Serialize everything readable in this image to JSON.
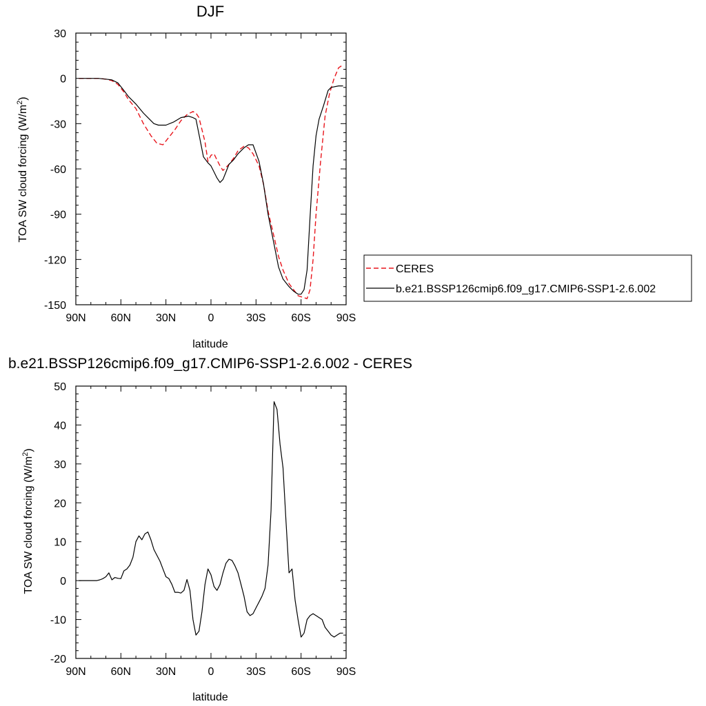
{
  "chart_data": [
    {
      "type": "line",
      "title": "DJF",
      "xlabel": "latitude",
      "ylabel": "TOA SW cloud forcing (W/m",
      "ylabel_sup": "2",
      "ylabel_end": ")",
      "xlim": [
        90,
        -90
      ],
      "ylim": [
        -150,
        30
      ],
      "xticks": [
        90,
        60,
        30,
        0,
        -30,
        -60,
        -90
      ],
      "xtick_labels": [
        "90N",
        "60N",
        "30N",
        "0",
        "30S",
        "60S",
        "90S"
      ],
      "yticks": [
        -150,
        -120,
        -90,
        -60,
        -30,
        0,
        30
      ],
      "ytick_labels": [
        "-150",
        "-120",
        "-90",
        "-60",
        "-30",
        "0",
        "30"
      ],
      "grid": false,
      "legend": "right",
      "series": [
        {
          "name": "CERES",
          "color": "#e8141b",
          "dash": "dashed",
          "x": [
            88,
            80,
            75,
            70,
            66,
            62,
            58,
            55,
            50,
            45,
            40,
            36,
            32,
            28,
            24,
            20,
            16,
            12,
            10,
            8,
            4,
            2,
            0,
            -2,
            -4,
            -6,
            -8,
            -10,
            -12,
            -15,
            -18,
            -22,
            -25,
            -28,
            -32,
            -35,
            -38,
            -42,
            -45,
            -48,
            -52,
            -55,
            -58,
            -61,
            -64,
            -66,
            -68,
            -70,
            -73,
            -76,
            -79,
            -82,
            -85,
            -88
          ],
          "y": [
            0,
            0,
            0,
            -0.5,
            -1.5,
            -4,
            -9,
            -14,
            -20,
            -30,
            -38,
            -43,
            -44,
            -39,
            -34,
            -28,
            -24,
            -22,
            -23,
            -26,
            -42,
            -55,
            -51,
            -50,
            -54,
            -58,
            -61,
            -59,
            -57,
            -53,
            -48,
            -45,
            -46,
            -50,
            -58,
            -70,
            -88,
            -105,
            -118,
            -127,
            -136,
            -140,
            -144,
            -145,
            -146,
            -140,
            -120,
            -90,
            -55,
            -25,
            -10,
            0,
            7,
            9
          ]
        },
        {
          "name": "b.e21.BSSP126cmip6.f09_g17.CMIP6-SSP1-2.6.002",
          "color": "#000000",
          "dash": "solid",
          "x": [
            88,
            80,
            75,
            70,
            66,
            62,
            58,
            55,
            50,
            45,
            42,
            38,
            35,
            30,
            25,
            20,
            15,
            12,
            10,
            8,
            5,
            2,
            0,
            -2,
            -4,
            -6,
            -8,
            -10,
            -12,
            -15,
            -18,
            -22,
            -25,
            -28,
            -32,
            -35,
            -38,
            -42,
            -45,
            -48,
            -52,
            -55,
            -58,
            -60,
            -62,
            -64,
            -66,
            -68,
            -70,
            -72,
            -75,
            -78,
            -80,
            -85,
            -88
          ],
          "y": [
            0,
            0,
            0,
            -0.5,
            -1,
            -3,
            -8,
            -12,
            -17,
            -23,
            -26,
            -30,
            -31,
            -31,
            -29,
            -26,
            -25,
            -26,
            -27,
            -37,
            -52,
            -56,
            -58,
            -62,
            -66,
            -69,
            -67,
            -62,
            -57,
            -54,
            -50,
            -46,
            -44,
            -44,
            -55,
            -70,
            -90,
            -110,
            -125,
            -133,
            -138,
            -141,
            -143,
            -143,
            -140,
            -127,
            -92,
            -58,
            -38,
            -27,
            -18,
            -8,
            -6,
            -5,
            -5
          ]
        }
      ]
    },
    {
      "type": "line",
      "title": "b.e21.BSSP126cmip6.f09_g17.CMIP6-SSP1-2.6.002 - CERES",
      "xlabel": "latitude",
      "ylabel": "TOA SW cloud forcing (W/m",
      "ylabel_sup": "2",
      "ylabel_end": ")",
      "xlim": [
        90,
        -90
      ],
      "ylim": [
        -20,
        50
      ],
      "xticks": [
        90,
        60,
        30,
        0,
        -30,
        -60,
        -90
      ],
      "xtick_labels": [
        "90N",
        "60N",
        "30N",
        "0",
        "30S",
        "60S",
        "90S"
      ],
      "yticks": [
        -20,
        -10,
        0,
        10,
        20,
        30,
        40,
        50
      ],
      "ytick_labels": [
        "-20",
        "-10",
        "0",
        "10",
        "20",
        "30",
        "40",
        "50"
      ],
      "grid": false,
      "series": [
        {
          "color": "#000000",
          "dash": "solid",
          "x": [
            88,
            84,
            80,
            76,
            74,
            72,
            70,
            68,
            66,
            64,
            62,
            60,
            58,
            56,
            54,
            52,
            50,
            48,
            46,
            44,
            42,
            40,
            38,
            36,
            34,
            32,
            30,
            28,
            26,
            24,
            22,
            20,
            18,
            16,
            14,
            12,
            10,
            8,
            6,
            4,
            2,
            0,
            -2,
            -4,
            -6,
            -8,
            -10,
            -12,
            -14,
            -16,
            -18,
            -20,
            -22,
            -24,
            -26,
            -28,
            -30,
            -32,
            -34,
            -36,
            -38,
            -40,
            -42,
            -44,
            -46,
            -48,
            -50,
            -52,
            -54,
            -56,
            -58,
            -60,
            -62,
            -64,
            -66,
            -68,
            -70,
            -72,
            -74,
            -76,
            -78,
            -80,
            -82,
            -84,
            -86,
            -88
          ],
          "y": [
            0,
            0,
            0,
            0,
            0.2,
            0.5,
            1,
            2,
            0.2,
            0.8,
            0.6,
            0.5,
            2.5,
            3,
            4,
            6,
            10,
            11.5,
            10.5,
            12,
            12.5,
            10.5,
            8,
            6.5,
            5,
            3,
            1,
            0.5,
            -1,
            -3,
            -3,
            -3.2,
            -2.5,
            0.3,
            -2.5,
            -10,
            -14,
            -13,
            -8,
            -1,
            3,
            1.5,
            -1.5,
            -2.5,
            -1,
            2,
            4.5,
            5.5,
            5.2,
            3.8,
            2,
            -1,
            -4,
            -8,
            -9,
            -8.5,
            -7,
            -5.5,
            -4,
            -2,
            4,
            18,
            46,
            44,
            35,
            29,
            15,
            2,
            3,
            -5,
            -10,
            -14.5,
            -13.5,
            -10,
            -9,
            -8.5,
            -9,
            -9.5,
            -10,
            -12,
            -13,
            -14,
            -14.5,
            -14,
            -13.5,
            -13.5
          ]
        }
      ]
    }
  ]
}
